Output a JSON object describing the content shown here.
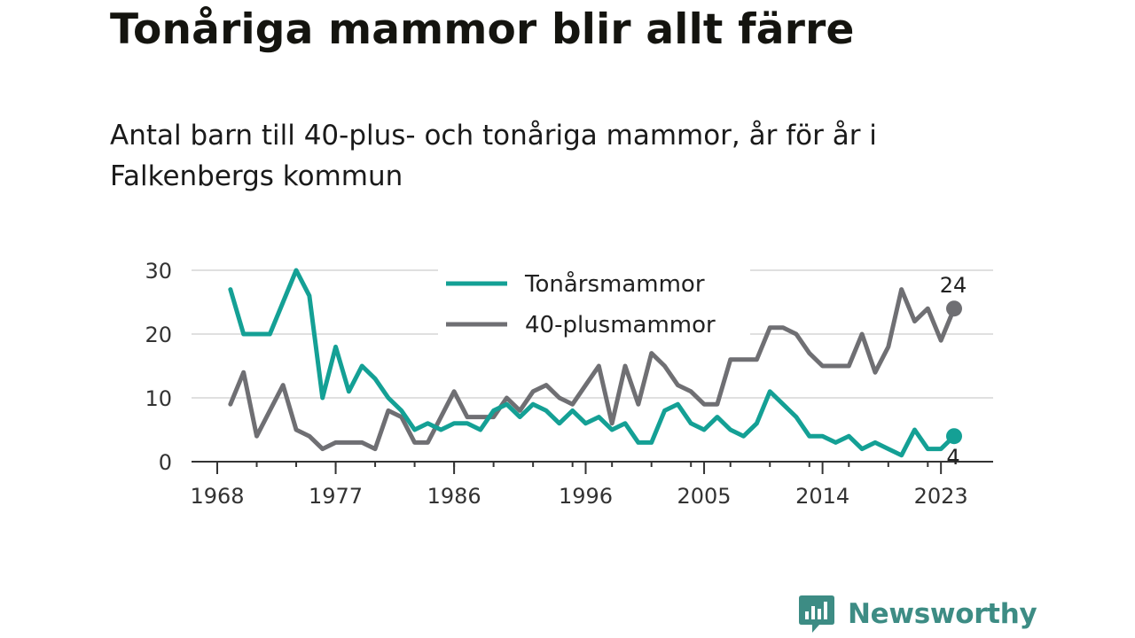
{
  "header": {
    "title": "Tonåriga mammor blir allt färre",
    "subtitle": "Antal barn till 40-plus- och tonåriga mammor, år för år i Falkenbergs kommun"
  },
  "brand": {
    "name": "Newsworthy",
    "icon": "newsworthy-logo-icon"
  },
  "colors": {
    "teen": "#14a095",
    "forty": "#6f6f73",
    "grid": "#e0e0e0",
    "axis": "#333333",
    "brand": "#3d8c84"
  },
  "chart_data": {
    "type": "line",
    "xlim": [
      1968,
      2024
    ],
    "ylim": [
      0,
      30
    ],
    "x_ticks": [
      1968,
      1977,
      1986,
      1996,
      2005,
      2014,
      2023
    ],
    "y_ticks": [
      0,
      10,
      20,
      30
    ],
    "grid": true,
    "legend": "top-center",
    "x": [
      1969,
      1970,
      1971,
      1972,
      1973,
      1974,
      1975,
      1976,
      1977,
      1978,
      1979,
      1980,
      1981,
      1982,
      1983,
      1984,
      1985,
      1986,
      1987,
      1988,
      1989,
      1990,
      1991,
      1992,
      1993,
      1994,
      1995,
      1996,
      1997,
      1998,
      1999,
      2000,
      2001,
      2002,
      2003,
      2004,
      2005,
      2006,
      2007,
      2008,
      2009,
      2010,
      2011,
      2012,
      2013,
      2014,
      2015,
      2016,
      2017,
      2018,
      2019,
      2020,
      2021,
      2022,
      2023,
      2024
    ],
    "series": [
      {
        "name": "Tonårsmammor",
        "color": "#14a095",
        "end_label": "4",
        "values": [
          27,
          20,
          20,
          20,
          25,
          30,
          26,
          10,
          18,
          11,
          15,
          13,
          10,
          8,
          5,
          6,
          5,
          6,
          6,
          5,
          8,
          9,
          7,
          9,
          8,
          6,
          8,
          6,
          7,
          5,
          6,
          3,
          3,
          8,
          9,
          6,
          5,
          7,
          5,
          4,
          6,
          11,
          9,
          7,
          4,
          4,
          3,
          4,
          2,
          3,
          2,
          1,
          5,
          2,
          2,
          4
        ]
      },
      {
        "name": "40-plusmammor",
        "color": "#6f6f73",
        "end_label": "24",
        "values": [
          9,
          14,
          4,
          8,
          12,
          5,
          4,
          2,
          3,
          3,
          3,
          2,
          8,
          7,
          3,
          3,
          7,
          11,
          7,
          7,
          7,
          10,
          8,
          11,
          12,
          10,
          9,
          12,
          15,
          6,
          15,
          9,
          17,
          15,
          12,
          11,
          9,
          9,
          16,
          16,
          16,
          21,
          21,
          20,
          17,
          15,
          15,
          15,
          20,
          14,
          18,
          27,
          22,
          24,
          19,
          24
        ]
      }
    ]
  }
}
